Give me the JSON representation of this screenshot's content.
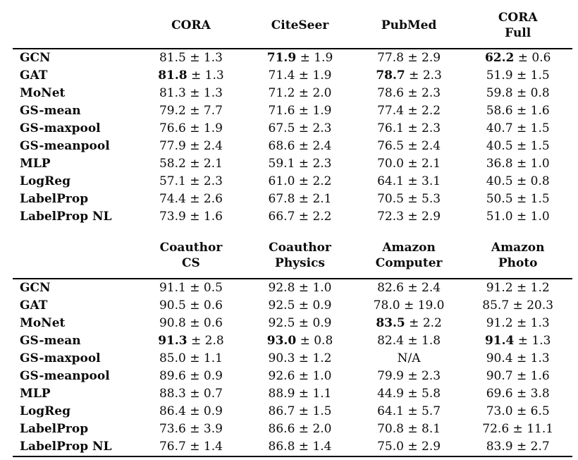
{
  "table": {
    "plus_minus": "±",
    "na_label": "N/A",
    "sections": [
      {
        "columns": [
          {
            "lines": [
              "CORA"
            ]
          },
          {
            "lines": [
              "CiteSeer"
            ]
          },
          {
            "lines": [
              "PubMed"
            ]
          },
          {
            "lines": [
              "CORA",
              "Full"
            ]
          }
        ],
        "rows": [
          {
            "label": "GCN",
            "cells": [
              {
                "mean": "81.5",
                "std": "1.3",
                "bold": false
              },
              {
                "mean": "71.9",
                "std": "1.9",
                "bold": true
              },
              {
                "mean": "77.8",
                "std": "2.9",
                "bold": false
              },
              {
                "mean": "62.2",
                "std": "0.6",
                "bold": true
              }
            ]
          },
          {
            "label": "GAT",
            "cells": [
              {
                "mean": "81.8",
                "std": "1.3",
                "bold": true
              },
              {
                "mean": "71.4",
                "std": "1.9",
                "bold": false
              },
              {
                "mean": "78.7",
                "std": "2.3",
                "bold": true
              },
              {
                "mean": "51.9",
                "std": "1.5",
                "bold": false
              }
            ]
          },
          {
            "label": "MoNet",
            "cells": [
              {
                "mean": "81.3",
                "std": "1.3",
                "bold": false
              },
              {
                "mean": "71.2",
                "std": "2.0",
                "bold": false
              },
              {
                "mean": "78.6",
                "std": "2.3",
                "bold": false
              },
              {
                "mean": "59.8",
                "std": "0.8",
                "bold": false
              }
            ]
          },
          {
            "label": "GS-mean",
            "cells": [
              {
                "mean": "79.2",
                "std": "7.7",
                "bold": false
              },
              {
                "mean": "71.6",
                "std": "1.9",
                "bold": false
              },
              {
                "mean": "77.4",
                "std": "2.2",
                "bold": false
              },
              {
                "mean": "58.6",
                "std": "1.6",
                "bold": false
              }
            ]
          },
          {
            "label": "GS-maxpool",
            "cells": [
              {
                "mean": "76.6",
                "std": "1.9",
                "bold": false
              },
              {
                "mean": "67.5",
                "std": "2.3",
                "bold": false
              },
              {
                "mean": "76.1",
                "std": "2.3",
                "bold": false
              },
              {
                "mean": "40.7",
                "std": "1.5",
                "bold": false
              }
            ]
          },
          {
            "label": "GS-meanpool",
            "cells": [
              {
                "mean": "77.9",
                "std": "2.4",
                "bold": false
              },
              {
                "mean": "68.6",
                "std": "2.4",
                "bold": false
              },
              {
                "mean": "76.5",
                "std": "2.4",
                "bold": false
              },
              {
                "mean": "40.5",
                "std": "1.5",
                "bold": false
              }
            ]
          },
          {
            "label": "MLP",
            "cells": [
              {
                "mean": "58.2",
                "std": "2.1",
                "bold": false
              },
              {
                "mean": "59.1",
                "std": "2.3",
                "bold": false
              },
              {
                "mean": "70.0",
                "std": "2.1",
                "bold": false
              },
              {
                "mean": "36.8",
                "std": "1.0",
                "bold": false
              }
            ]
          },
          {
            "label": "LogReg",
            "cells": [
              {
                "mean": "57.1",
                "std": "2.3",
                "bold": false
              },
              {
                "mean": "61.0",
                "std": "2.2",
                "bold": false
              },
              {
                "mean": "64.1",
                "std": "3.1",
                "bold": false
              },
              {
                "mean": "40.5",
                "std": "0.8",
                "bold": false
              }
            ]
          },
          {
            "label": "LabelProp",
            "cells": [
              {
                "mean": "74.4",
                "std": "2.6",
                "bold": false
              },
              {
                "mean": "67.8",
                "std": "2.1",
                "bold": false
              },
              {
                "mean": "70.5",
                "std": "5.3",
                "bold": false
              },
              {
                "mean": "50.5",
                "std": "1.5",
                "bold": false
              }
            ]
          },
          {
            "label": "LabelProp NL",
            "cells": [
              {
                "mean": "73.9",
                "std": "1.6",
                "bold": false
              },
              {
                "mean": "66.7",
                "std": "2.2",
                "bold": false
              },
              {
                "mean": "72.3",
                "std": "2.9",
                "bold": false
              },
              {
                "mean": "51.0",
                "std": "1.0",
                "bold": false
              }
            ]
          }
        ]
      },
      {
        "columns": [
          {
            "lines": [
              "Coauthor",
              "CS"
            ]
          },
          {
            "lines": [
              "Coauthor",
              "Physics"
            ]
          },
          {
            "lines": [
              "Amazon",
              "Computer"
            ]
          },
          {
            "lines": [
              "Amazon",
              "Photo"
            ]
          }
        ],
        "rows": [
          {
            "label": "GCN",
            "cells": [
              {
                "mean": "91.1",
                "std": "0.5",
                "bold": false
              },
              {
                "mean": "92.8",
                "std": "1.0",
                "bold": false
              },
              {
                "mean": "82.6",
                "std": "2.4",
                "bold": false
              },
              {
                "mean": "91.2",
                "std": "1.2",
                "bold": false
              }
            ]
          },
          {
            "label": "GAT",
            "cells": [
              {
                "mean": "90.5",
                "std": "0.6",
                "bold": false
              },
              {
                "mean": "92.5",
                "std": "0.9",
                "bold": false
              },
              {
                "mean": "78.0",
                "std": "19.0",
                "bold": false
              },
              {
                "mean": "85.7",
                "std": "20.3",
                "bold": false
              }
            ]
          },
          {
            "label": "MoNet",
            "cells": [
              {
                "mean": "90.8",
                "std": "0.6",
                "bold": false
              },
              {
                "mean": "92.5",
                "std": "0.9",
                "bold": false
              },
              {
                "mean": "83.5",
                "std": "2.2",
                "bold": true
              },
              {
                "mean": "91.2",
                "std": "1.3",
                "bold": false
              }
            ]
          },
          {
            "label": "GS-mean",
            "cells": [
              {
                "mean": "91.3",
                "std": "2.8",
                "bold": true
              },
              {
                "mean": "93.0",
                "std": "0.8",
                "bold": true
              },
              {
                "mean": "82.4",
                "std": "1.8",
                "bold": false
              },
              {
                "mean": "91.4",
                "std": "1.3",
                "bold": true
              }
            ]
          },
          {
            "label": "GS-maxpool",
            "cells": [
              {
                "mean": "85.0",
                "std": "1.1",
                "bold": false
              },
              {
                "mean": "90.3",
                "std": "1.2",
                "bold": false
              },
              {
                "na": true
              },
              {
                "mean": "90.4",
                "std": "1.3",
                "bold": false
              }
            ]
          },
          {
            "label": "GS-meanpool",
            "cells": [
              {
                "mean": "89.6",
                "std": "0.9",
                "bold": false
              },
              {
                "mean": "92.6",
                "std": "1.0",
                "bold": false
              },
              {
                "mean": "79.9",
                "std": "2.3",
                "bold": false
              },
              {
                "mean": "90.7",
                "std": "1.6",
                "bold": false
              }
            ]
          },
          {
            "label": "MLP",
            "cells": [
              {
                "mean": "88.3",
                "std": "0.7",
                "bold": false
              },
              {
                "mean": "88.9",
                "std": "1.1",
                "bold": false
              },
              {
                "mean": "44.9",
                "std": "5.8",
                "bold": false
              },
              {
                "mean": "69.6",
                "std": "3.8",
                "bold": false
              }
            ]
          },
          {
            "label": "LogReg",
            "cells": [
              {
                "mean": "86.4",
                "std": "0.9",
                "bold": false
              },
              {
                "mean": "86.7",
                "std": "1.5",
                "bold": false
              },
              {
                "mean": "64.1",
                "std": "5.7",
                "bold": false
              },
              {
                "mean": "73.0",
                "std": "6.5",
                "bold": false
              }
            ]
          },
          {
            "label": "LabelProp",
            "cells": [
              {
                "mean": "73.6",
                "std": "3.9",
                "bold": false
              },
              {
                "mean": "86.6",
                "std": "2.0",
                "bold": false
              },
              {
                "mean": "70.8",
                "std": "8.1",
                "bold": false
              },
              {
                "mean": "72.6",
                "std": "11.1",
                "bold": false
              }
            ]
          },
          {
            "label": "LabelProp NL",
            "cells": [
              {
                "mean": "76.7",
                "std": "1.4",
                "bold": false
              },
              {
                "mean": "86.8",
                "std": "1.4",
                "bold": false
              },
              {
                "mean": "75.0",
                "std": "2.9",
                "bold": false
              },
              {
                "mean": "83.9",
                "std": "2.7",
                "bold": false
              }
            ]
          }
        ]
      }
    ]
  }
}
